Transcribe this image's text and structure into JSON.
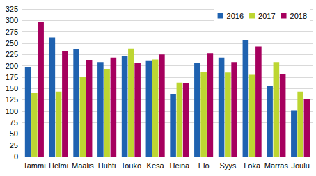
{
  "chart_data": {
    "type": "bar",
    "categories": [
      "Tammi",
      "Helmi",
      "Maalis",
      "Huhti",
      "Touko",
      "Kesä",
      "Heinä",
      "Elo",
      "Syys",
      "Loka",
      "Marras",
      "Joulu"
    ],
    "series": [
      {
        "name": "2016",
        "color": "#1f62b0",
        "values": [
          197,
          263,
          237,
          208,
          221,
          212,
          138,
          207,
          218,
          257,
          156,
          102
        ]
      },
      {
        "name": "2017",
        "color": "#bdd632",
        "values": [
          141,
          143,
          175,
          193,
          238,
          214,
          163,
          187,
          185,
          180,
          208,
          143
        ]
      },
      {
        "name": "2018",
        "color": "#a6005e",
        "values": [
          296,
          233,
          213,
          218,
          206,
          225,
          162,
          228,
          208,
          243,
          181,
          127
        ]
      }
    ],
    "ylim": [
      0,
      325
    ],
    "yticks": [
      0,
      25,
      50,
      75,
      100,
      125,
      150,
      175,
      200,
      225,
      250,
      275,
      300,
      325
    ],
    "grid": true,
    "legend": "top-right"
  }
}
